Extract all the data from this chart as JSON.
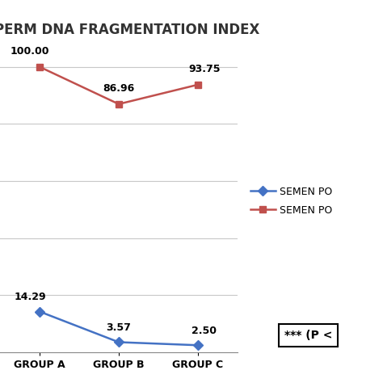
{
  "title": "SPERM DNA FRAGMENTATION INDEX",
  "groups": [
    "GROUP A",
    "GROUP B",
    "GROUP C"
  ],
  "series1_label": "SEMEN PO",
  "series2_label": "SEMEN PO",
  "series1_values": [
    14.29,
    3.57,
    2.5
  ],
  "series2_values": [
    100.0,
    86.96,
    93.75
  ],
  "series1_color": "#4472C4",
  "series2_color": "#C0504D",
  "series1_marker": "D",
  "series2_marker": "s",
  "annotation_text": "*** (P <",
  "background_color": "#ffffff",
  "title_fontsize": 12,
  "label_fontsize": 9,
  "annotation_fontsize": 10,
  "ylim": [
    0,
    110
  ],
  "grid_color": "#c8c8c8",
  "tick_label_fontsize": 9
}
